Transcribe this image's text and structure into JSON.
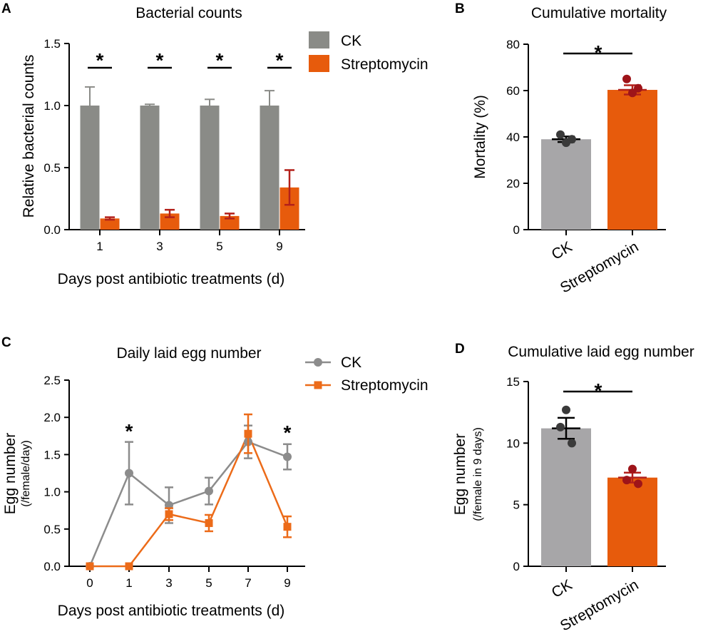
{
  "colors": {
    "ck_bar": "#8a8b87",
    "strep_bar": "#e75b0c",
    "ck_bar_light": "#a7a6a8",
    "ck_line": "#8c8c8c",
    "strep_line": "#ec6b19",
    "strep_err": "#b3201a",
    "ck_dot": "#3a3a3a",
    "strep_dot": "#9e1419",
    "axis": "#000000"
  },
  "chart_data": [
    {
      "panel": "A",
      "type": "bar",
      "title": "Bacterial counts",
      "xlabel": "Days post antibiotic treatments (d)",
      "ylabel": "Relative bacterial counts",
      "ylim": [
        0,
        1.5
      ],
      "yticks": [
        "0.0",
        "0.5",
        "1.0",
        "1.5"
      ],
      "categories": [
        "1",
        "3",
        "5",
        "9"
      ],
      "legend": [
        "CK",
        "Streptomycin"
      ],
      "significance": [
        "*",
        "*",
        "*",
        "*"
      ],
      "series": [
        {
          "name": "CK",
          "values": [
            1.0,
            1.0,
            1.0,
            1.0
          ],
          "errors": [
            0.15,
            0.01,
            0.05,
            0.12
          ]
        },
        {
          "name": "Streptomycin",
          "values": [
            0.09,
            0.13,
            0.11,
            0.34
          ],
          "errors": [
            0.01,
            0.03,
            0.02,
            0.14
          ]
        }
      ]
    },
    {
      "panel": "B",
      "type": "bar",
      "title": "Cumulative mortality",
      "ylabel": "Mortality (%)",
      "ylim": [
        0,
        80
      ],
      "yticks": [
        "0",
        "20",
        "40",
        "60",
        "80"
      ],
      "categories": [
        "CK",
        "Streptomycin"
      ],
      "values": [
        39,
        60.3
      ],
      "errors": [
        1.2,
        2.0
      ],
      "points": [
        [
          41,
          39,
          37.5
        ],
        [
          65,
          61,
          59
        ]
      ],
      "significance": "*"
    },
    {
      "panel": "C",
      "type": "line",
      "title": "Daily laid egg number",
      "xlabel": "Days post antibiotic treatments (d)",
      "ylabel": "Egg number",
      "ylabel_sub": "(/female/day)",
      "ylim": [
        0,
        2.5
      ],
      "yticks": [
        "0.0",
        "0.5",
        "1.0",
        "1.5",
        "2.0",
        "2.5"
      ],
      "x": [
        "0",
        "1",
        "3",
        "5",
        "7",
        "9"
      ],
      "legend": [
        "CK",
        "Streptomycin"
      ],
      "significance": [
        "",
        "*",
        "",
        "",
        "",
        "*"
      ],
      "series": [
        {
          "name": "CK",
          "values": [
            0,
            1.25,
            0.82,
            1.01,
            1.67,
            1.47
          ],
          "errors": [
            0,
            0.42,
            0.24,
            0.18,
            0.22,
            0.17
          ]
        },
        {
          "name": "Streptomycin",
          "values": [
            0,
            0,
            0.7,
            0.58,
            1.78,
            0.53
          ],
          "errors": [
            0,
            0,
            0.08,
            0.11,
            0.26,
            0.14
          ]
        }
      ]
    },
    {
      "panel": "D",
      "type": "bar",
      "title": "Cumulative laid egg number",
      "ylabel": "Egg number",
      "ylabel_sub": "(/female in 9 days)",
      "ylim": [
        0,
        15
      ],
      "yticks": [
        "0",
        "5",
        "10",
        "15"
      ],
      "categories": [
        "CK",
        "Streptomycin"
      ],
      "values": [
        11.2,
        7.2
      ],
      "errors": [
        0.85,
        0.4
      ],
      "points": [
        [
          12.7,
          11.3,
          10.0
        ],
        [
          7.9,
          7.0,
          6.7
        ]
      ],
      "significance": "*"
    }
  ]
}
